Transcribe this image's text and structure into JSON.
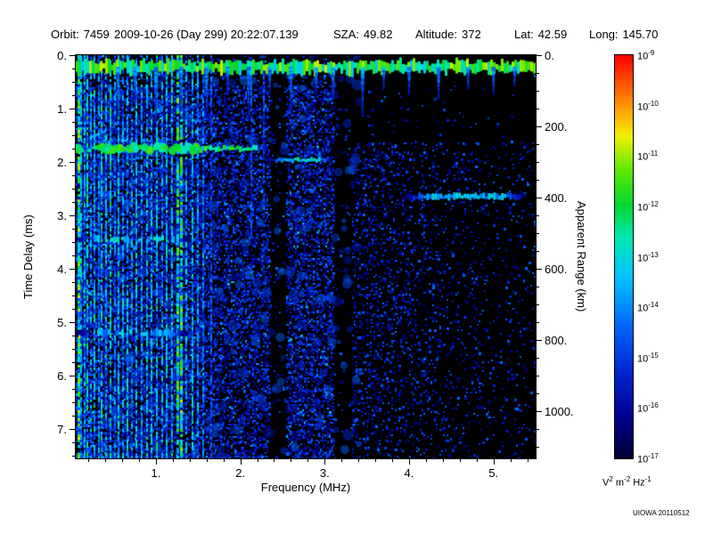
{
  "header": {
    "fields": [
      {
        "label": "Orbit:",
        "value": "7459"
      },
      {
        "label": "",
        "value": "2009-10-26 (Day 299) 20:22:07.139"
      },
      {
        "label": "SZA:",
        "value": "49.82"
      },
      {
        "label": "Altitude:",
        "value": "372"
      },
      {
        "label": "Lat:",
        "value": "42.59"
      },
      {
        "label": "Long:",
        "value": "145.70"
      }
    ]
  },
  "footer": {
    "credit": "UIOWA 20110512"
  },
  "chart_data": {
    "type": "heatmap",
    "title": "",
    "xlabel": "Frequency (MHz)",
    "ylabel_left": "Time Delay (ms)",
    "ylabel_right": "Apparent Range (km)",
    "x_range_mhz": [
      0.05,
      5.5
    ],
    "y_range_ms": [
      0,
      7.55
    ],
    "km_per_ms": 150,
    "x_ticks": [
      {
        "v": 1,
        "label": "1."
      },
      {
        "v": 2,
        "label": "2."
      },
      {
        "v": 3,
        "label": "3."
      },
      {
        "v": 4,
        "label": "4."
      },
      {
        "v": 5,
        "label": "5."
      }
    ],
    "x_minor_step": 0.2,
    "y_ticks_left": [
      {
        "v": 0,
        "label": "0."
      },
      {
        "v": 1,
        "label": "1."
      },
      {
        "v": 2,
        "label": "2."
      },
      {
        "v": 3,
        "label": "3."
      },
      {
        "v": 4,
        "label": "4."
      },
      {
        "v": 5,
        "label": "5."
      },
      {
        "v": 6,
        "label": "6."
      },
      {
        "v": 7,
        "label": "7."
      }
    ],
    "y_minor_step": 0.25,
    "y_ticks_right": [
      {
        "v": 0,
        "label": "0."
      },
      {
        "v": 200,
        "label": "200."
      },
      {
        "v": 400,
        "label": "400."
      },
      {
        "v": 600,
        "label": "600."
      },
      {
        "v": 800,
        "label": "800."
      },
      {
        "v": 1000,
        "label": "1000."
      }
    ],
    "right_minor_step_km": 50,
    "colorbar": {
      "base": "10",
      "exponents": [
        "-9",
        "-10",
        "-11",
        "-12",
        "-13",
        "-14",
        "-15",
        "-16",
        "-17"
      ],
      "unit_parts": [
        [
          "V",
          "2"
        ],
        [
          "m",
          "-2"
        ],
        [
          "Hz",
          "-1"
        ]
      ]
    },
    "colormap_stops": [
      [
        0,
        "#000030"
      ],
      [
        0.1,
        "#000090"
      ],
      [
        0.22,
        "#0028d0"
      ],
      [
        0.33,
        "#0066ff"
      ],
      [
        0.45,
        "#00c4ff"
      ],
      [
        0.55,
        "#00e8b0"
      ],
      [
        0.63,
        "#00d830"
      ],
      [
        0.72,
        "#66e800"
      ],
      [
        0.8,
        "#f0f000"
      ],
      [
        0.88,
        "#ff9000"
      ],
      [
        1,
        "#ff0000"
      ]
    ],
    "features": {
      "seed": 42,
      "band": {
        "t_center_ms": 0.22,
        "i": 0.6
      },
      "dark_bands_mhz": [
        [
          2.34,
          2.54
        ],
        [
          3.1,
          3.32
        ]
      ],
      "speckle": {
        "left": 0.5,
        "mid": 0.42,
        "right": 0.28
      },
      "stripes": [
        {
          "f": 0.07,
          "w": 3,
          "i": 0.66
        },
        {
          "f": 0.1,
          "w": 2,
          "i": 0.5
        },
        {
          "f": 0.14,
          "w": 2,
          "i": 0.46
        },
        {
          "f": 0.18,
          "w": 2,
          "i": 0.56
        },
        {
          "f": 0.22,
          "w": 2,
          "i": 0.44
        },
        {
          "f": 0.26,
          "w": 2,
          "i": 0.52
        },
        {
          "f": 0.31,
          "w": 2,
          "i": 0.42
        },
        {
          "f": 0.35,
          "w": 2,
          "i": 0.5
        },
        {
          "f": 0.4,
          "w": 2,
          "i": 0.46
        },
        {
          "f": 0.45,
          "w": 2,
          "i": 0.54
        },
        {
          "f": 0.5,
          "w": 2,
          "i": 0.4
        },
        {
          "f": 0.55,
          "w": 2,
          "i": 0.5
        },
        {
          "f": 0.6,
          "w": 2,
          "i": 0.46
        },
        {
          "f": 0.65,
          "w": 2,
          "i": 0.52
        },
        {
          "f": 0.7,
          "w": 2,
          "i": 0.42
        },
        {
          "f": 0.76,
          "w": 2,
          "i": 0.5
        },
        {
          "f": 0.82,
          "w": 2,
          "i": 0.44
        },
        {
          "f": 0.88,
          "w": 2,
          "i": 0.5
        },
        {
          "f": 0.94,
          "w": 2,
          "i": 0.46
        },
        {
          "f": 1.0,
          "w": 2,
          "i": 0.52
        },
        {
          "f": 1.06,
          "w": 2,
          "i": 0.44
        },
        {
          "f": 1.12,
          "w": 2,
          "i": 0.48
        },
        {
          "f": 1.18,
          "w": 2,
          "i": 0.5
        },
        {
          "f": 1.24,
          "w": 3,
          "i": 0.62
        },
        {
          "f": 1.29,
          "w": 3,
          "i": 0.64
        },
        {
          "f": 1.35,
          "w": 2,
          "i": 0.46
        },
        {
          "f": 1.42,
          "w": 2,
          "i": 0.5
        },
        {
          "f": 1.49,
          "w": 2,
          "i": 0.42
        },
        {
          "f": 1.55,
          "w": 2,
          "i": 0.38
        },
        {
          "f": 1.64,
          "w": 2,
          "i": 0.32
        },
        {
          "f": 2.12,
          "w": 2,
          "i": 0.3,
          "y1": 0.45
        },
        {
          "f": 2.27,
          "w": 2,
          "i": 0.3,
          "y1": 0.4
        }
      ],
      "drips": [
        {
          "f": 0.55,
          "d": 0.9
        },
        {
          "f": 0.75,
          "d": 0.7
        },
        {
          "f": 1.0,
          "d": 1.1
        },
        {
          "f": 1.3,
          "d": 0.8
        },
        {
          "f": 1.6,
          "d": 0.9
        },
        {
          "f": 1.85,
          "d": 0.5
        },
        {
          "f": 2.1,
          "d": 0.9
        },
        {
          "f": 2.35,
          "d": 0.45
        },
        {
          "f": 2.6,
          "d": 0.85
        },
        {
          "f": 2.9,
          "d": 0.5
        },
        {
          "f": 3.1,
          "d": 0.6
        },
        {
          "f": 3.45,
          "d": 0.9
        },
        {
          "f": 3.7,
          "d": 0.4
        },
        {
          "f": 4.0,
          "d": 0.5
        },
        {
          "f": 4.35,
          "d": 0.6
        },
        {
          "f": 4.7,
          "d": 0.4
        },
        {
          "f": 5.0,
          "d": 0.5
        },
        {
          "f": 5.25,
          "d": 0.35
        }
      ],
      "traces": [
        {
          "t": 1.75,
          "f0": 0.05,
          "f1": 2.32,
          "th": 5,
          "i": 0.62,
          "kind": "green",
          "chunky": true
        },
        {
          "t": 1.62,
          "f0": 0.05,
          "f1": 1.3,
          "th": 3,
          "i": 0.4,
          "kind": "green",
          "gappy": true
        },
        {
          "t": 1.97,
          "f0": 2.32,
          "f1": 3.08,
          "th": 4,
          "i": 0.55,
          "kind": "green"
        },
        {
          "t": 3.45,
          "f0": 0.05,
          "f1": 1.35,
          "th": 6,
          "i": 0.5,
          "kind": "green",
          "gappy": true
        },
        {
          "t": 5.2,
          "f0": 0.05,
          "f1": 1.35,
          "th": 6,
          "i": 0.46,
          "kind": "green",
          "gappy": true
        },
        {
          "t": 2.65,
          "f0": 3.95,
          "f1": 5.35,
          "th": 6,
          "i": 0.46,
          "kind": "cyan"
        }
      ]
    }
  }
}
